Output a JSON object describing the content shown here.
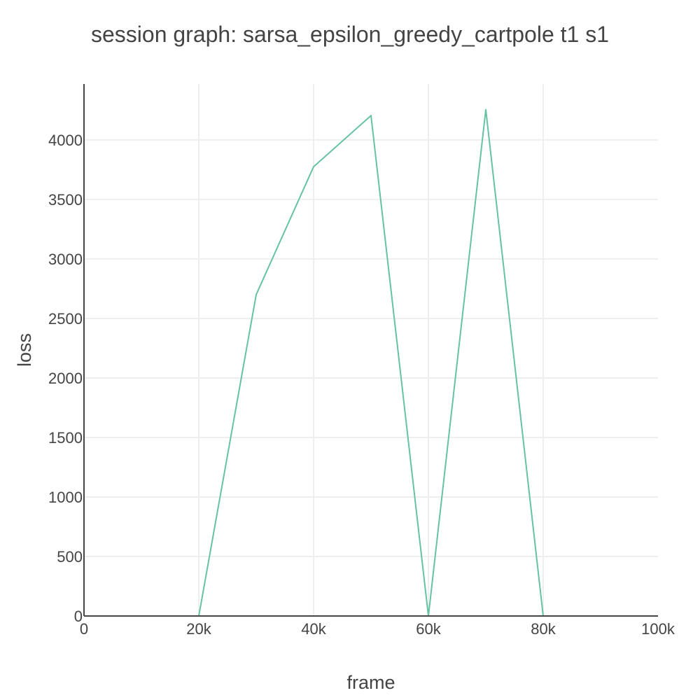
{
  "chart_data": {
    "type": "line",
    "title": "session graph: sarsa_epsilon_greedy_cartpole t1 s1",
    "xlabel": "frame",
    "ylabel": "loss",
    "xlim": [
      0,
      100000
    ],
    "ylim": [
      0,
      4470
    ],
    "x_ticks": [
      0,
      20000,
      40000,
      60000,
      80000,
      100000
    ],
    "x_tick_labels": [
      "0",
      "20k",
      "40k",
      "60k",
      "80k",
      "100k"
    ],
    "y_ticks": [
      0,
      500,
      1000,
      1500,
      2000,
      2500,
      3000,
      3500,
      4000
    ],
    "y_tick_labels": [
      "0",
      "500",
      "1000",
      "1500",
      "2000",
      "2500",
      "3000",
      "3500",
      "4000"
    ],
    "grid": true,
    "legend": "none",
    "series": [
      {
        "color": "#66c2a5",
        "x": [
          10000,
          20000,
          30000,
          40000,
          50000,
          60000,
          70000,
          80000,
          90000,
          100000
        ],
        "y": [
          0,
          0,
          2700,
          3775,
          4205,
          0,
          4255,
          0,
          0,
          0
        ]
      }
    ]
  }
}
